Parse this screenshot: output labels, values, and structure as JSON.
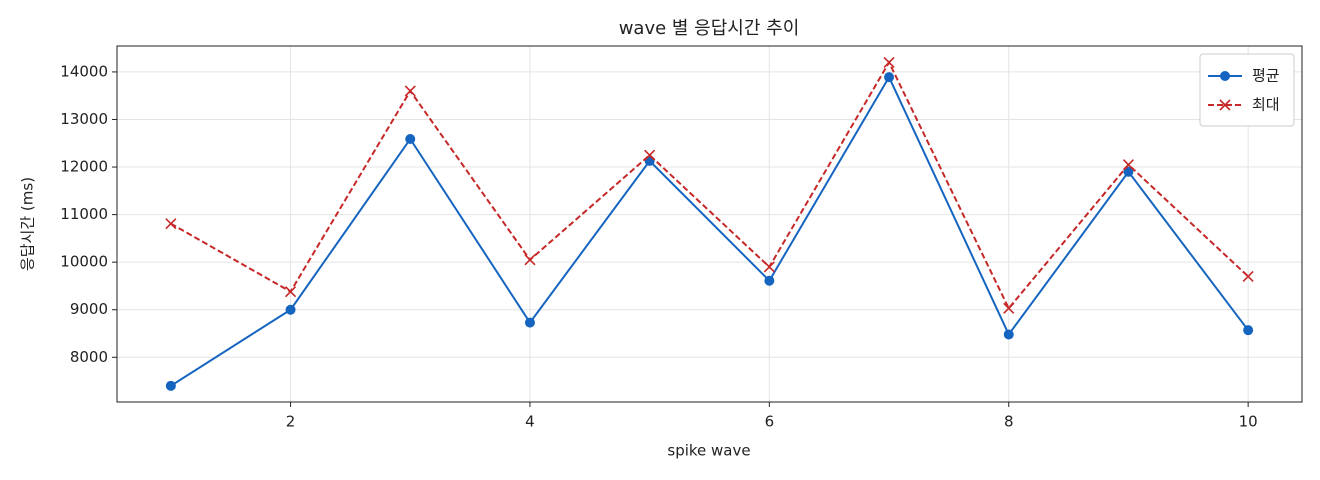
{
  "chart_data": {
    "type": "line",
    "title": "wave 별 응답시간 추이",
    "x_label": "spike wave",
    "y_label": "응답시간 (ms)",
    "x": [
      1,
      2,
      3,
      4,
      5,
      6,
      7,
      8,
      9,
      10
    ],
    "series": [
      {
        "name": "평균",
        "color": "#1565c0",
        "marker": "circle",
        "dash": "solid",
        "values": [
          7400,
          9000,
          12590,
          8730,
          12130,
          9610,
          13890,
          8480,
          11900,
          8570
        ]
      },
      {
        "name": "최대",
        "color": "#c62828",
        "marker": "x",
        "dash": "dashed",
        "values": [
          10810,
          9380,
          13600,
          10050,
          12250,
          9900,
          14200,
          9030,
          12050,
          9700
        ]
      }
    ],
    "xlim": [
      0.55,
      10.45
    ],
    "ylim": [
      7060,
      14545
    ],
    "xticks": [
      2,
      4,
      6,
      8,
      10
    ],
    "yticks": [
      8000,
      9000,
      10000,
      11000,
      12000,
      13000,
      14000
    ],
    "grid": true,
    "legend": "upper-right"
  }
}
